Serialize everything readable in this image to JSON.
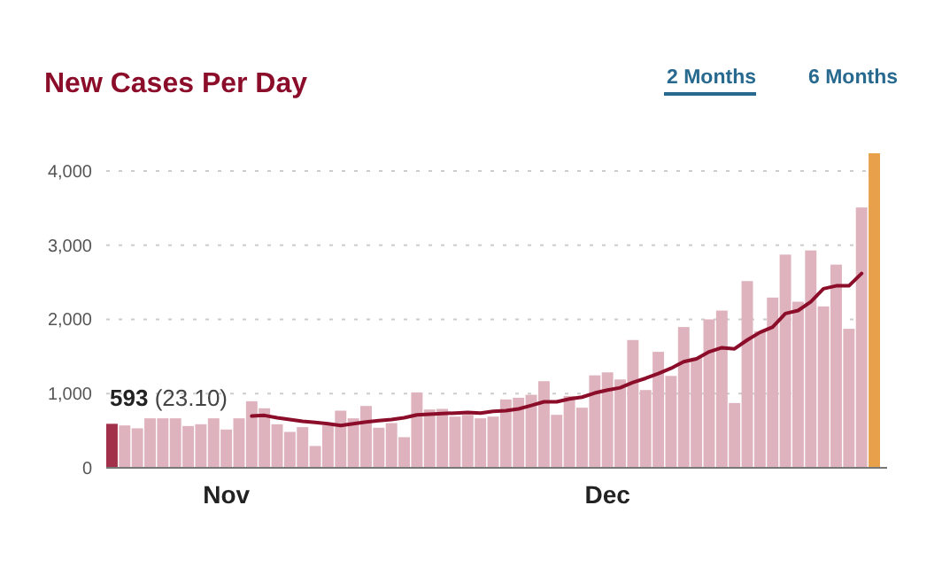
{
  "chart_data": {
    "type": "bar",
    "title": "New Cases Per Day",
    "categories": [
      null,
      null,
      null,
      null,
      null,
      null,
      null,
      null,
      null,
      "Nov",
      null,
      null,
      null,
      null,
      null,
      null,
      null,
      null,
      null,
      null,
      null,
      null,
      null,
      null,
      null,
      null,
      null,
      null,
      null,
      null,
      null,
      null,
      null,
      null,
      null,
      null,
      null,
      null,
      null,
      "Dec",
      null,
      null,
      null,
      null,
      null,
      null,
      null,
      null,
      null,
      null,
      null,
      null,
      null,
      null,
      null,
      null,
      null,
      null,
      null,
      null,
      null
    ],
    "series": [
      {
        "colors": [
          "#a3304a",
          "#dfb3bd",
          "#dfb3bd",
          "#dfb3bd",
          "#dfb3bd",
          "#dfb3bd",
          "#dfb3bd",
          "#dfb3bd",
          "#dfb3bd",
          "#dfb3bd",
          "#dfb3bd",
          "#dfb3bd",
          "#dfb3bd",
          "#dfb3bd",
          "#dfb3bd",
          "#dfb3bd",
          "#dfb3bd",
          "#dfb3bd",
          "#dfb3bd",
          "#dfb3bd",
          "#dfb3bd",
          "#dfb3bd",
          "#dfb3bd",
          "#dfb3bd",
          "#dfb3bd",
          "#dfb3bd",
          "#dfb3bd",
          "#dfb3bd",
          "#dfb3bd",
          "#dfb3bd",
          "#dfb3bd",
          "#dfb3bd",
          "#dfb3bd",
          "#dfb3bd",
          "#dfb3bd",
          "#dfb3bd",
          "#dfb3bd",
          "#dfb3bd",
          "#dfb3bd",
          "#dfb3bd",
          "#dfb3bd",
          "#dfb3bd",
          "#dfb3bd",
          "#dfb3bd",
          "#dfb3bd",
          "#dfb3bd",
          "#dfb3bd",
          "#dfb3bd",
          "#dfb3bd",
          "#dfb3bd",
          "#dfb3bd",
          "#dfb3bd",
          "#dfb3bd",
          "#dfb3bd",
          "#dfb3bd",
          "#dfb3bd",
          "#dfb3bd",
          "#dfb3bd",
          "#dfb3bd",
          "#dfb3bd",
          "#e8a04a"
        ],
        "values": [
          593,
          571,
          532,
          667,
          667,
          667,
          563,
          587,
          667,
          516,
          667,
          897,
          802,
          587,
          484,
          548,
          294,
          571,
          770,
          667,
          833,
          540,
          603,
          413,
          1016,
          786,
          794,
          690,
          714,
          667,
          690,
          921,
          944,
          984,
          1167,
          714,
          968,
          810,
          1246,
          1286,
          1190,
          1722,
          1048,
          1563,
          1238,
          1897,
          1484,
          2000,
          2119,
          873,
          2516,
          1841,
          2294,
          2873,
          2238,
          2929,
          2175,
          2738,
          1873,
          3508,
          4238
        ]
      },
      {
        "type": "line",
        "color": "#8b0d2a",
        "values": [
          null,
          null,
          null,
          null,
          null,
          null,
          null,
          null,
          null,
          null,
          null,
          698,
          706,
          675,
          651,
          627,
          611,
          595,
          571,
          595,
          619,
          635,
          651,
          675,
          714,
          722,
          730,
          738,
          746,
          738,
          762,
          770,
          794,
          841,
          889,
          889,
          929,
          952,
          1008,
          1048,
          1079,
          1151,
          1206,
          1270,
          1341,
          1429,
          1468,
          1563,
          1619,
          1603,
          1722,
          1825,
          1897,
          2079,
          2119,
          2238,
          2413,
          2452,
          2452,
          2619,
          null
        ]
      }
    ],
    "ylim": [
      0,
      4250
    ],
    "yticks": [
      0,
      {
        "value": 1000,
        "label": "1,000"
      },
      {
        "value": 2000,
        "label": "2,000"
      },
      {
        "value": 3000,
        "label": "3,000"
      },
      {
        "value": 4000,
        "label": "4,000"
      }
    ],
    "grid": "y",
    "annotations": [
      {
        "text": "593 (23.10)",
        "y": 593
      },
      "2 Months",
      "6 Months"
    ]
  }
}
